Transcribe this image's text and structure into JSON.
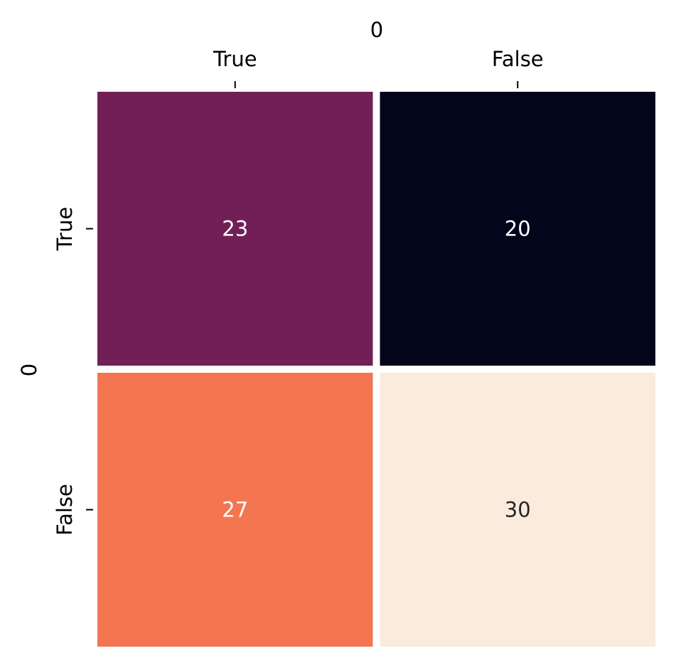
{
  "chart_data": {
    "type": "heatmap",
    "title": "",
    "xlabel": "0",
    "ylabel": "0",
    "x_categories": [
      "True",
      "False"
    ],
    "y_categories": [
      "True",
      "False"
    ],
    "values": [
      [
        23,
        20
      ],
      [
        27,
        30
      ]
    ],
    "cells": [
      {
        "row": 0,
        "col": 0,
        "value": 23,
        "label": "23",
        "color": "#721f57",
        "text_color": "#ffffff"
      },
      {
        "row": 0,
        "col": 1,
        "value": 20,
        "label": "20",
        "color": "#03051a",
        "text_color": "#ffffff"
      },
      {
        "row": 1,
        "col": 0,
        "value": 27,
        "label": "27",
        "color": "#f37651",
        "text_color": "#ffffff"
      },
      {
        "row": 1,
        "col": 1,
        "value": 30,
        "label": "30",
        "color": "#faebdd",
        "text_color": "#262626"
      }
    ],
    "colormap": "rocket",
    "colorbar": false,
    "x_ticks_position": "top",
    "grid": false,
    "legend": "none",
    "cell_separator_color": "#ffffff"
  }
}
